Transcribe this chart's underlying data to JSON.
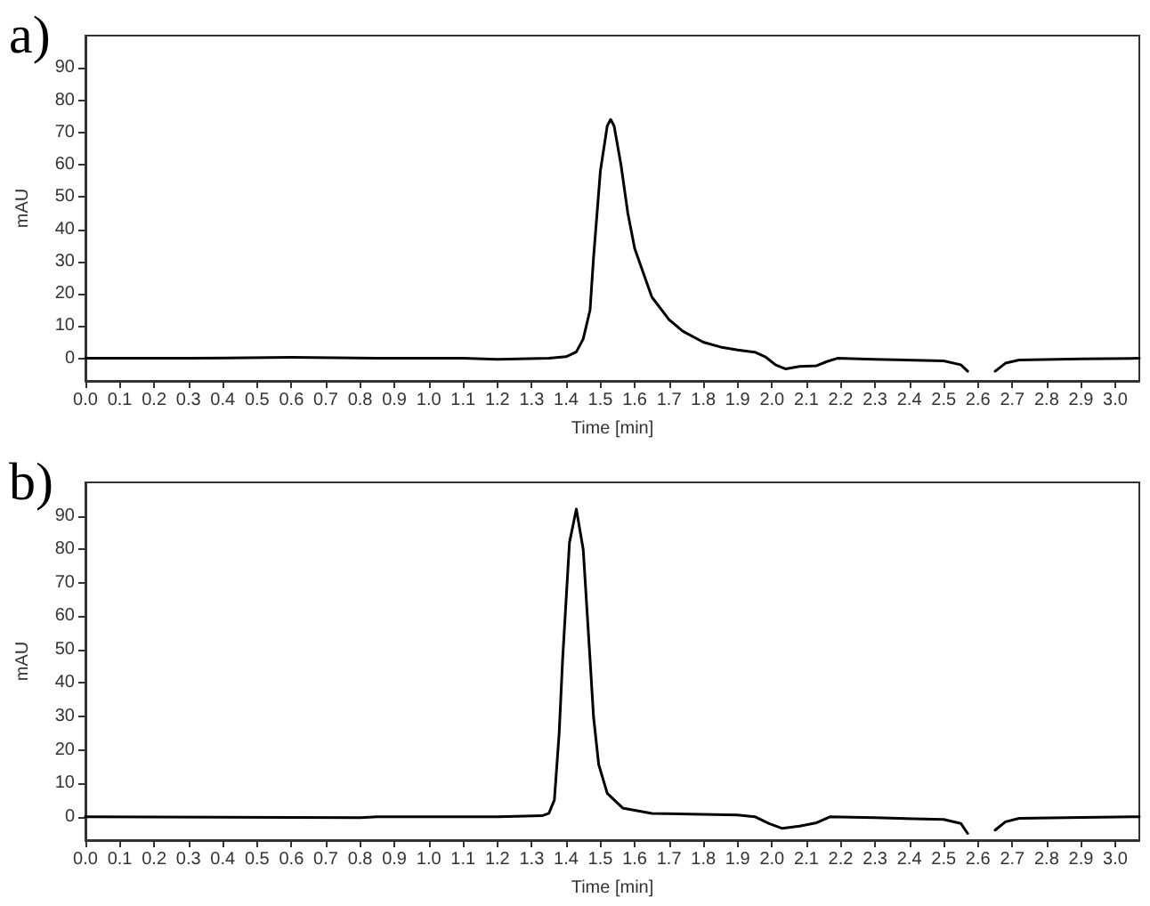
{
  "chart_data": [
    {
      "type": "line",
      "title": "a)",
      "xlabel": "Time [min]",
      "ylabel": "mAU",
      "xlim": [
        0,
        3.07
      ],
      "ylim": [
        -7,
        100
      ],
      "xticks": [
        {
          "value": 0,
          "label": "0.0"
        },
        0.1,
        0.2,
        0.3,
        0.4,
        0.5,
        0.6,
        0.7,
        0.8,
        0.9,
        {
          "value": 1,
          "label": "1.0"
        },
        1.1,
        1.2,
        1.3,
        1.4,
        1.5,
        1.6,
        1.7,
        1.8,
        1.9,
        {
          "value": 2,
          "label": "2.0"
        },
        2.1,
        2.2,
        2.3,
        2.4,
        2.5,
        2.6,
        2.7,
        2.8,
        2.9,
        {
          "value": 3,
          "label": "3.0"
        }
      ],
      "yticks": [
        0,
        10,
        20,
        30,
        40,
        50,
        60,
        70,
        80,
        90
      ],
      "grid": false,
      "marker": "none",
      "line_style": "solid",
      "series": [
        {
          "color": "#000000",
          "x": [
            0,
            0.3,
            0.6,
            0.85,
            1.1,
            1.2,
            1.35,
            1.4,
            1.43,
            1.45,
            1.47,
            1.48,
            1.5,
            1.52,
            1.53,
            1.54,
            1.56,
            1.58,
            1.6,
            1.63,
            1.65,
            1.7,
            1.74,
            1.8,
            1.85,
            1.9,
            1.95,
            1.98,
            2.01,
            2.04,
            2.08,
            2.13,
            2.16,
            2.19,
            2.3,
            2.5,
            2.55,
            2.57,
            2.58,
            2.63,
            2.65,
            2.68,
            2.72,
            2.9,
            3.07
          ],
          "values": [
            0,
            0,
            0.3,
            0,
            0,
            -0.3,
            0,
            0.5,
            2,
            6,
            15,
            31,
            58,
            72,
            74,
            72,
            60,
            45,
            34,
            25,
            19,
            12,
            8.4,
            5,
            3.5,
            2.6,
            1.9,
            0.5,
            -2,
            -3.3,
            -2.5,
            -2.3,
            -1,
            0,
            -0.3,
            -0.8,
            -2,
            -4,
            null,
            null,
            -4,
            -1.5,
            -0.5,
            -0.2,
            0
          ]
        }
      ]
    },
    {
      "type": "line",
      "title": "b)",
      "xlabel": "Time [min]",
      "ylabel": "mAU",
      "xlim": [
        0,
        3.07
      ],
      "ylim": [
        -7,
        100
      ],
      "xticks": [
        {
          "value": 0,
          "label": "0.0"
        },
        0.1,
        0.2,
        0.3,
        0.4,
        0.5,
        0.6,
        0.7,
        0.8,
        0.9,
        {
          "value": 1,
          "label": "1.0"
        },
        1.1,
        1.2,
        1.3,
        1.4,
        1.5,
        1.6,
        1.7,
        1.8,
        1.9,
        {
          "value": 2,
          "label": "2.0"
        },
        2.1,
        2.2,
        2.3,
        2.4,
        2.5,
        2.6,
        2.7,
        2.8,
        2.9,
        {
          "value": 3,
          "label": "3.0"
        }
      ],
      "yticks": [
        0,
        10,
        20,
        30,
        40,
        50,
        60,
        70,
        80,
        90
      ],
      "grid": false,
      "marker": "none",
      "line_style": "solid",
      "series": [
        {
          "color": "#000000",
          "x": [
            0,
            0.8,
            0.85,
            1.2,
            1.33,
            1.35,
            1.366,
            1.38,
            1.39,
            1.41,
            1.43,
            1.45,
            1.47,
            1.48,
            1.495,
            1.52,
            1.565,
            1.65,
            1.9,
            1.95,
            1.99,
            2.03,
            2.08,
            2.13,
            2.17,
            2.3,
            2.5,
            2.55,
            2.57,
            2.58,
            2.63,
            2.65,
            2.68,
            2.72,
            2.9,
            3.07
          ],
          "values": [
            0,
            -0.3,
            0,
            0,
            0.3,
            1,
            5,
            25,
            47,
            82,
            92,
            80,
            47,
            30,
            15.7,
            7,
            2.6,
            1,
            0.5,
            0,
            -2,
            -3.5,
            -2.8,
            -1.8,
            0,
            -0.3,
            -0.8,
            -2,
            -5,
            null,
            null,
            -4,
            -1.5,
            -0.5,
            -0.2,
            0
          ]
        }
      ]
    }
  ]
}
